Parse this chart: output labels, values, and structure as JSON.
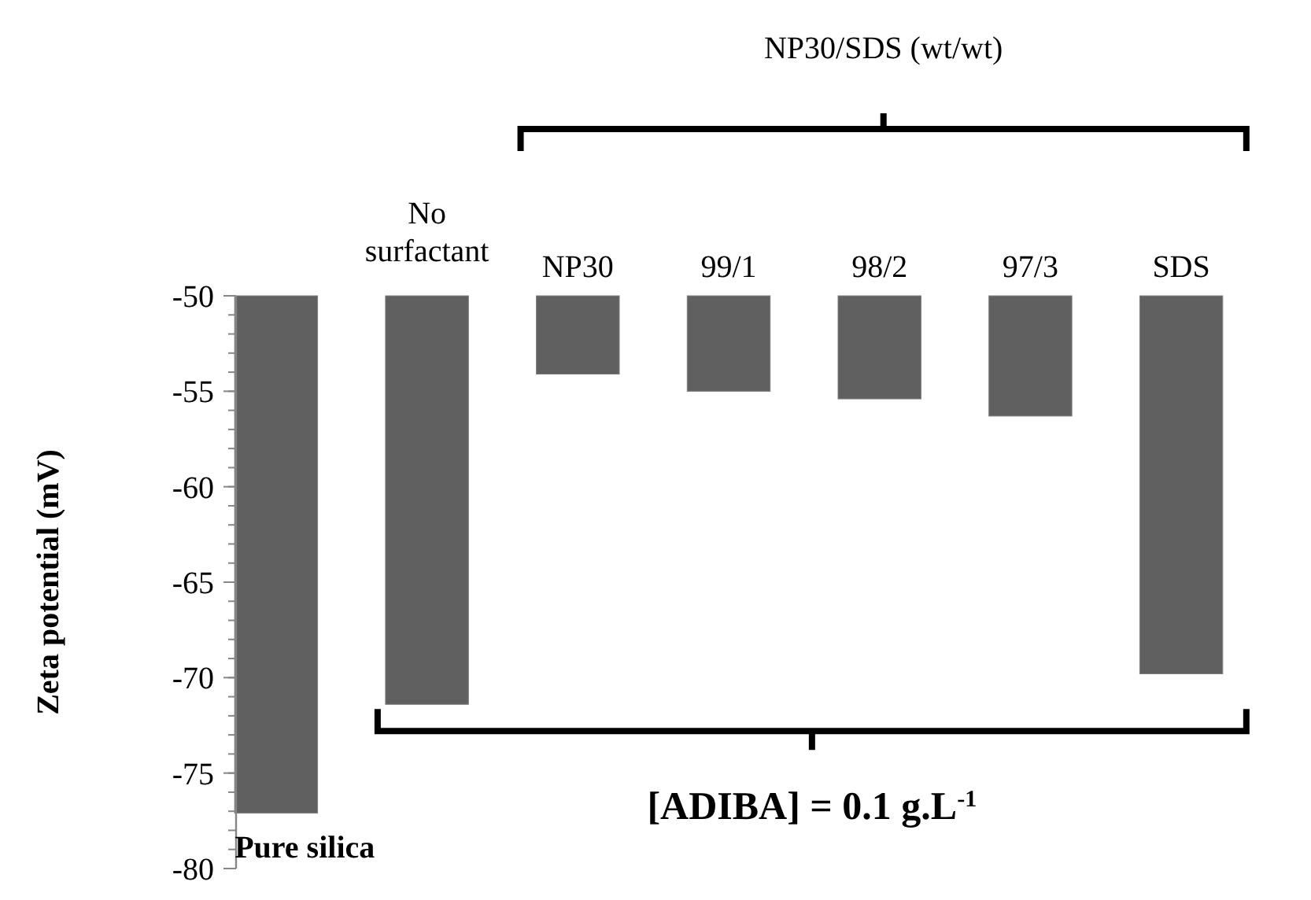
{
  "chart_data": {
    "type": "bar",
    "ylabel": "Zeta potential (mV)",
    "categories": [
      "Pure silica",
      "No surfactant",
      "NP30",
      "99/1",
      "98/2",
      "97/3",
      "SDS"
    ],
    "values": [
      -77.1,
      -71.4,
      -54.1,
      -55.0,
      -55.4,
      -56.3,
      -69.8
    ],
    "color": "#606060",
    "ylim": [
      -80,
      -50
    ],
    "yticks": [
      -80,
      -75,
      -70,
      -65,
      -60,
      -55,
      -50
    ],
    "annotations": [
      "NP30/SDS (wt/wt)",
      "[ADIBA] = 0.1 g.L$^{-1}$"
    ],
    "grid": false
  }
}
